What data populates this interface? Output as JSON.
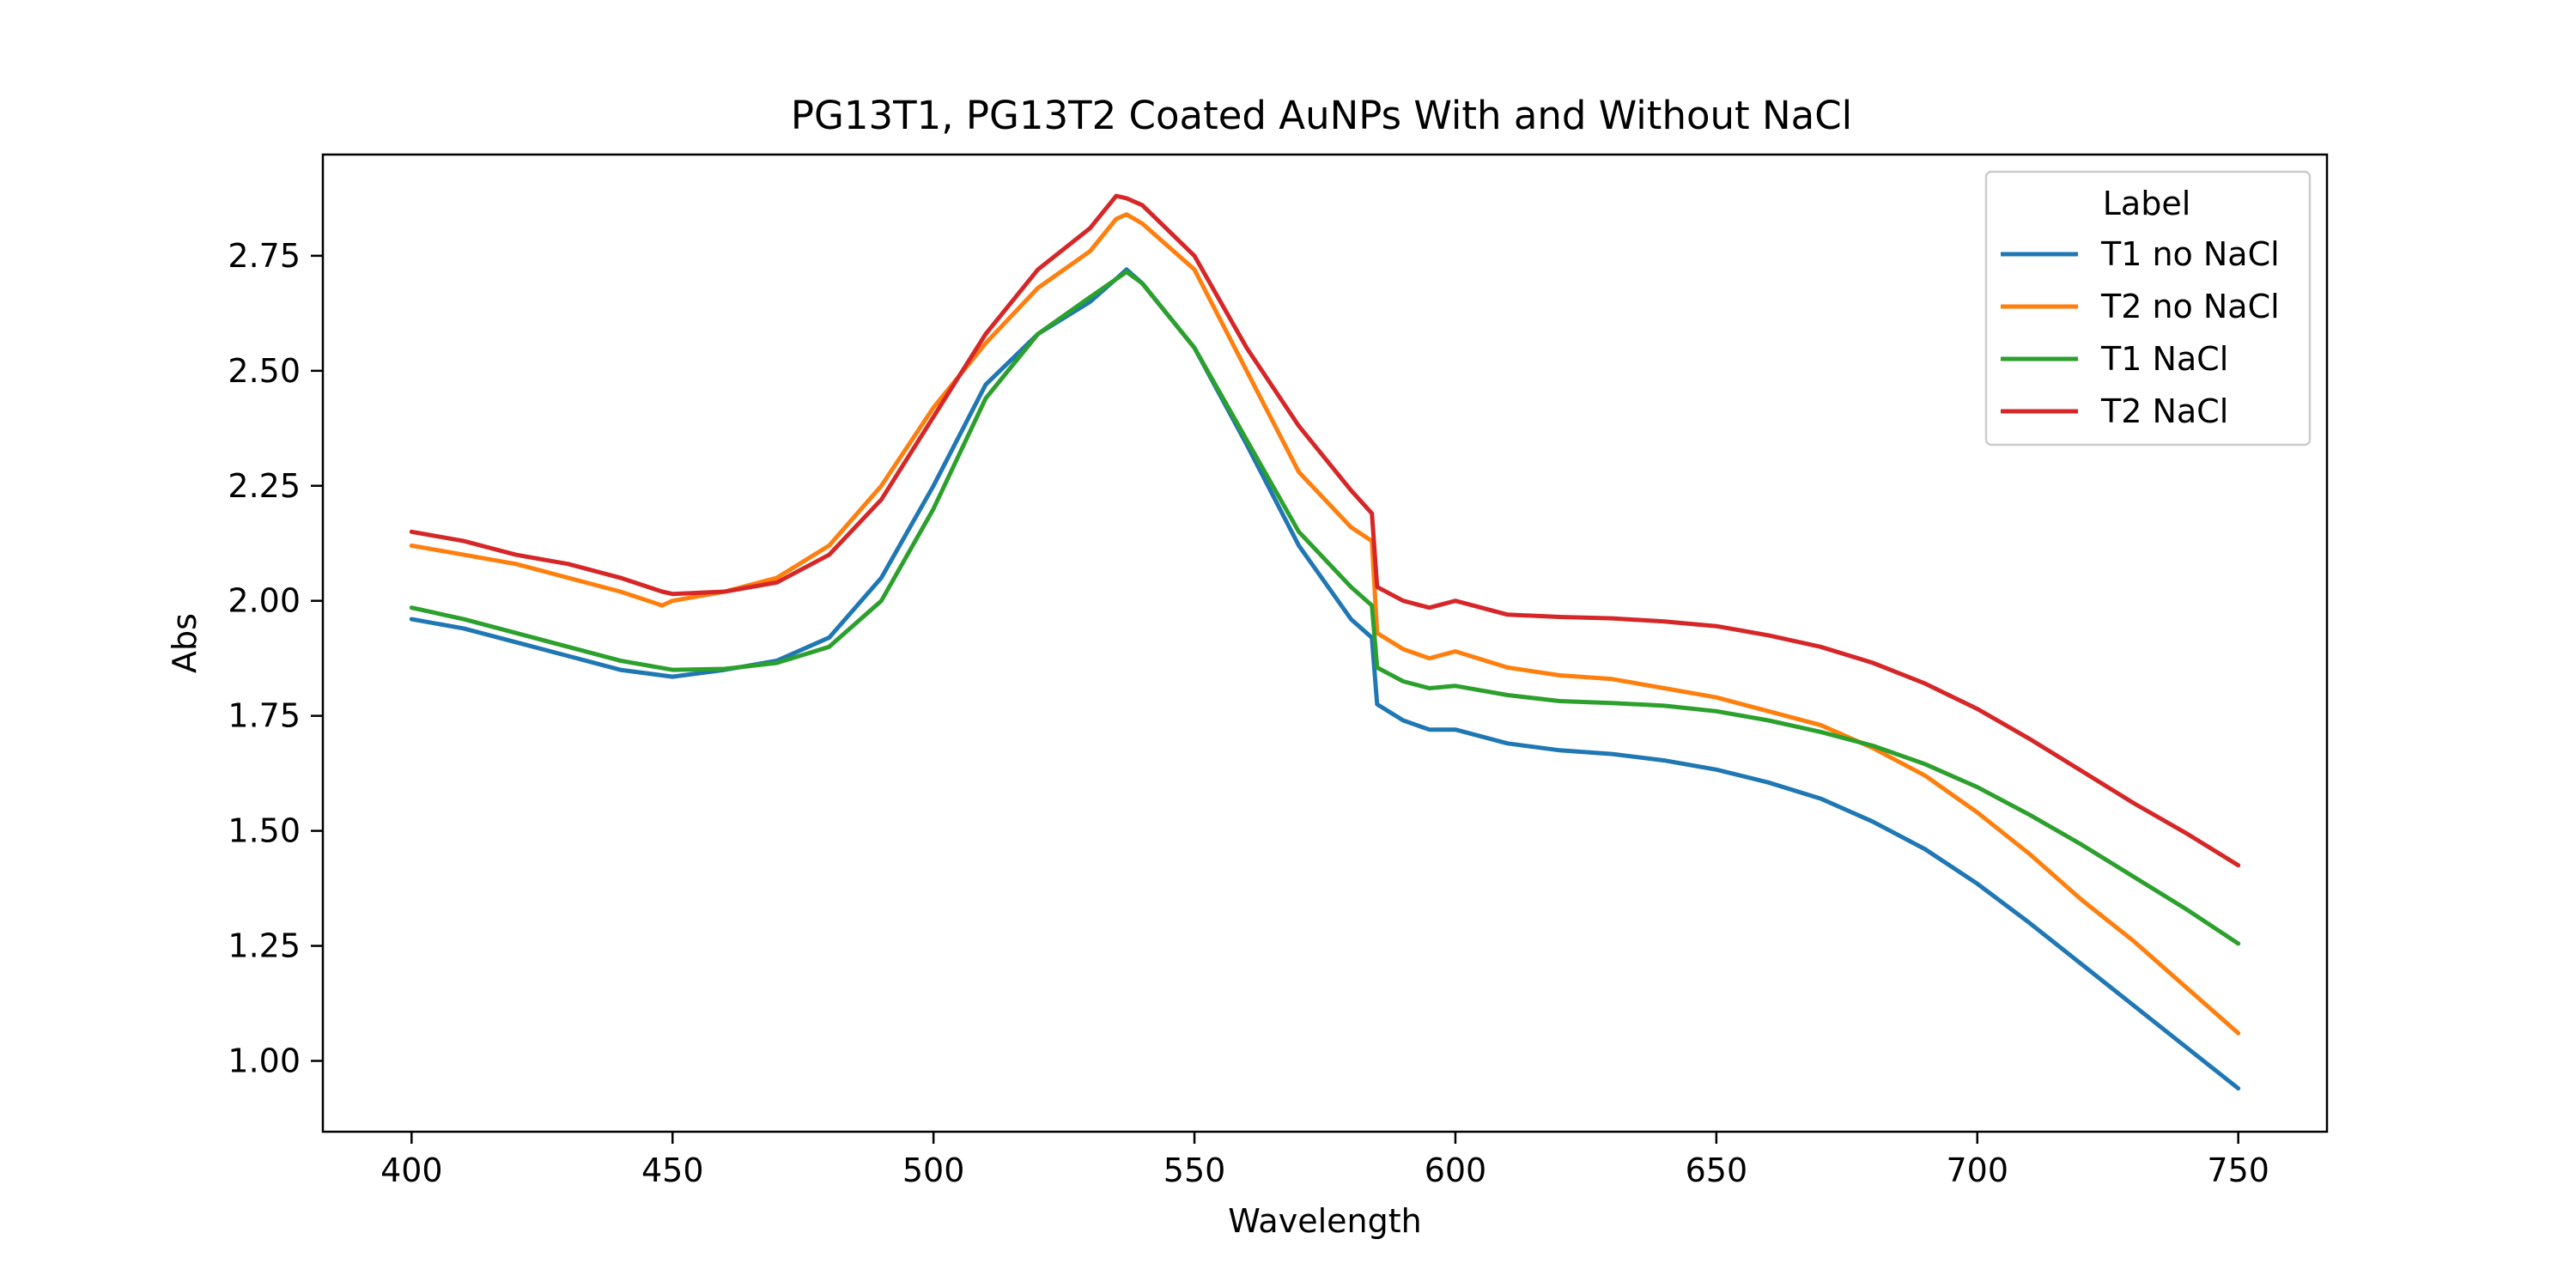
{
  "chart_data": {
    "type": "line",
    "title": "PG13T1, PG13T2 Coated AuNPs With and Without NaCl",
    "xlabel": "Wavelength",
    "ylabel": "Abs",
    "xlim": [
      383,
      767
    ],
    "ylim": [
      0.846,
      2.97
    ],
    "xticks": [
      400,
      450,
      500,
      550,
      600,
      650,
      700,
      750
    ],
    "xtick_labels": [
      "400",
      "450",
      "500",
      "550",
      "600",
      "650",
      "700",
      "750"
    ],
    "yticks": [
      1.0,
      1.25,
      1.5,
      1.75,
      2.0,
      2.25,
      2.5,
      2.75
    ],
    "ytick_labels": [
      "1.00",
      "1.25",
      "1.50",
      "1.75",
      "2.00",
      "2.25",
      "2.50",
      "2.75"
    ],
    "grid": false,
    "legend": {
      "title": "Label",
      "placement": "top-right"
    },
    "series": [
      {
        "name": "T1 no NaCl",
        "color": "#1f77b4",
        "x": [
          400,
          410,
          420,
          430,
          440,
          450,
          460,
          470,
          480,
          490,
          500,
          510,
          520,
          530,
          535,
          537,
          540,
          550,
          560,
          570,
          580,
          584,
          585,
          590,
          595,
          600,
          610,
          620,
          630,
          640,
          650,
          660,
          670,
          680,
          690,
          700,
          710,
          720,
          730,
          740,
          750
        ],
        "y": [
          1.96,
          1.94,
          1.91,
          1.88,
          1.85,
          1.835,
          1.85,
          1.87,
          1.92,
          2.05,
          2.25,
          2.47,
          2.58,
          2.65,
          2.7,
          2.72,
          2.69,
          2.55,
          2.34,
          2.12,
          1.96,
          1.92,
          1.775,
          1.74,
          1.72,
          1.72,
          1.69,
          1.675,
          1.667,
          1.653,
          1.633,
          1.605,
          1.57,
          1.52,
          1.46,
          1.385,
          1.3,
          1.21,
          1.12,
          1.03,
          0.94
        ]
      },
      {
        "name": "T2 no NaCl",
        "color": "#ff7f0e",
        "x": [
          400,
          410,
          420,
          430,
          440,
          448,
          450,
          460,
          470,
          480,
          490,
          500,
          510,
          520,
          530,
          535,
          537,
          540,
          550,
          560,
          570,
          580,
          584,
          585,
          590,
          595,
          600,
          610,
          620,
          630,
          640,
          650,
          660,
          670,
          680,
          690,
          700,
          710,
          720,
          730,
          740,
          750
        ],
        "y": [
          2.12,
          2.1,
          2.08,
          2.05,
          2.02,
          1.99,
          2.0,
          2.02,
          2.05,
          2.12,
          2.25,
          2.42,
          2.56,
          2.68,
          2.76,
          2.83,
          2.84,
          2.82,
          2.72,
          2.5,
          2.28,
          2.16,
          2.13,
          1.93,
          1.895,
          1.875,
          1.89,
          1.855,
          1.838,
          1.83,
          1.81,
          1.79,
          1.76,
          1.73,
          1.68,
          1.62,
          1.54,
          1.45,
          1.35,
          1.26,
          1.16,
          1.06
        ]
      },
      {
        "name": "T1 NaCl",
        "color": "#2ca02c",
        "x": [
          400,
          410,
          420,
          430,
          440,
          450,
          460,
          470,
          480,
          490,
          500,
          510,
          520,
          530,
          537,
          540,
          550,
          560,
          570,
          580,
          584,
          585,
          590,
          595,
          600,
          610,
          620,
          630,
          640,
          650,
          660,
          670,
          680,
          690,
          700,
          710,
          720,
          730,
          740,
          750
        ],
        "y": [
          1.985,
          1.96,
          1.93,
          1.9,
          1.87,
          1.85,
          1.852,
          1.865,
          1.9,
          2.0,
          2.2,
          2.44,
          2.58,
          2.66,
          2.715,
          2.69,
          2.55,
          2.35,
          2.15,
          2.03,
          1.99,
          1.855,
          1.825,
          1.81,
          1.815,
          1.795,
          1.782,
          1.778,
          1.772,
          1.76,
          1.74,
          1.715,
          1.685,
          1.645,
          1.595,
          1.535,
          1.47,
          1.4,
          1.33,
          1.255
        ]
      },
      {
        "name": "T2 NaCl",
        "color": "#d62728",
        "x": [
          400,
          410,
          420,
          430,
          440,
          448,
          450,
          460,
          470,
          480,
          490,
          500,
          510,
          520,
          530,
          535,
          537,
          540,
          550,
          560,
          570,
          580,
          584,
          585,
          590,
          595,
          600,
          610,
          620,
          630,
          640,
          650,
          660,
          670,
          680,
          690,
          700,
          710,
          720,
          730,
          740,
          750
        ],
        "y": [
          2.15,
          2.13,
          2.1,
          2.08,
          2.05,
          2.02,
          2.015,
          2.02,
          2.04,
          2.1,
          2.22,
          2.4,
          2.58,
          2.72,
          2.81,
          2.88,
          2.875,
          2.86,
          2.75,
          2.55,
          2.38,
          2.24,
          2.19,
          2.03,
          2.0,
          1.985,
          2.0,
          1.97,
          1.965,
          1.962,
          1.955,
          1.945,
          1.925,
          1.9,
          1.865,
          1.82,
          1.765,
          1.7,
          1.63,
          1.56,
          1.495,
          1.425
        ]
      }
    ]
  }
}
